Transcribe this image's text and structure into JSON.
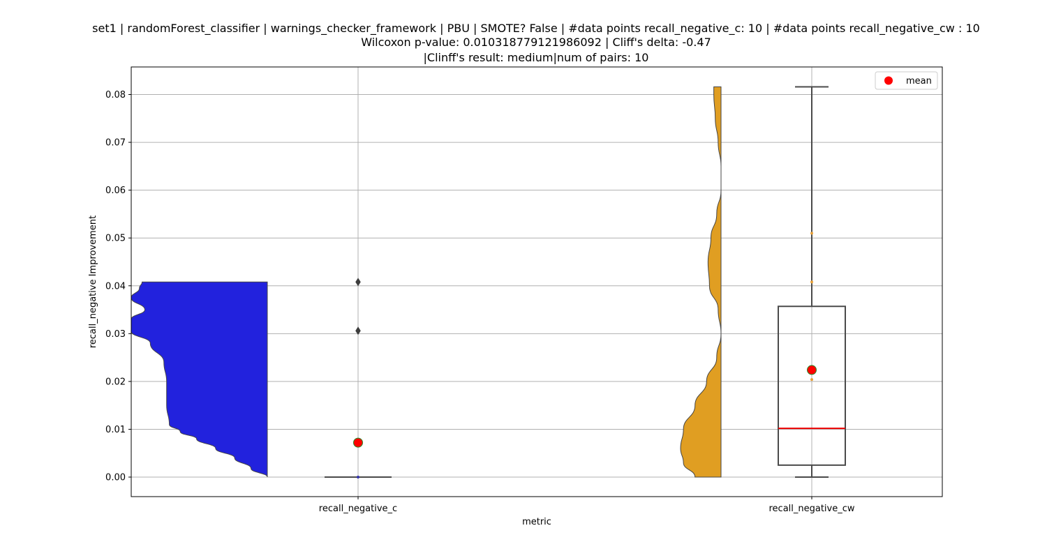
{
  "chart_data": {
    "type": "violin",
    "title_lines": [
      "set1 | randomForest_classifier | warnings_checker_framework | PBU | SMOTE? False | #data points recall_negative_c: 10 | #data points recall_negative_cw : 10",
      "Wilcoxon p-value: 0.010318779121986092 | Cliff's delta: -0.47",
      "|Clinff's result: medium|num of pairs: 10"
    ],
    "xlabel": "metric",
    "ylabel": "recall_negative Improvement",
    "categories": [
      "recall_negative_c",
      "recall_negative_cw"
    ],
    "ylim": [
      -0.004,
      0.0858
    ],
    "yticks": [
      0.0,
      0.01,
      0.02,
      0.03,
      0.04,
      0.05,
      0.06,
      0.07,
      0.08
    ],
    "ytick_labels": [
      "0.00",
      "0.01",
      "0.02",
      "0.03",
      "0.04",
      "0.05",
      "0.06",
      "0.07",
      "0.08"
    ],
    "grid": true,
    "legend": {
      "position": "top-right",
      "entries": [
        {
          "label": "mean",
          "marker": "red-circle"
        }
      ]
    },
    "colors": {
      "violin_c": "#2222dd",
      "violin_cw": "#e09e22",
      "box_edge": "#4a4a4a",
      "median": "#ee0000",
      "mean_fill": "#ff0000",
      "mean_edge": "#2a8a2a",
      "grid": "#b0b0b0"
    },
    "series": [
      {
        "category": "recall_negative_c",
        "violin_side": "left",
        "violin_range": [
          0.0,
          0.0408
        ],
        "violin_density": [
          [
            0.0,
            0.0
          ],
          [
            0.0018,
            0.06
          ],
          [
            0.004,
            0.12
          ],
          [
            0.006,
            0.19
          ],
          [
            0.008,
            0.26
          ],
          [
            0.0095,
            0.32
          ],
          [
            0.011,
            0.36
          ],
          [
            0.015,
            0.37
          ],
          [
            0.02,
            0.37
          ],
          [
            0.024,
            0.38
          ],
          [
            0.028,
            0.43
          ],
          [
            0.0305,
            0.5
          ],
          [
            0.033,
            0.5
          ],
          [
            0.035,
            0.45
          ],
          [
            0.0375,
            0.5
          ],
          [
            0.0395,
            0.47
          ],
          [
            0.0408,
            0.46
          ]
        ],
        "box": {
          "whislo": 0.0,
          "q1": 0.0,
          "median": 0.0,
          "q3": 0.0,
          "whishi": 0.0
        },
        "outliers": [
          0.0306,
          0.0408
        ],
        "mean": 0.0072
      },
      {
        "category": "recall_negative_cw",
        "violin_side": "left",
        "violin_range": [
          0.0,
          0.0816
        ],
        "violin_density": [
          [
            0.0,
            0.18
          ],
          [
            0.003,
            0.26
          ],
          [
            0.006,
            0.28
          ],
          [
            0.01,
            0.26
          ],
          [
            0.015,
            0.18
          ],
          [
            0.02,
            0.1
          ],
          [
            0.025,
            0.03
          ],
          [
            0.03,
            0.0
          ],
          [
            0.035,
            0.02
          ],
          [
            0.04,
            0.08
          ],
          [
            0.045,
            0.09
          ],
          [
            0.05,
            0.07
          ],
          [
            0.055,
            0.03
          ],
          [
            0.06,
            0.0
          ],
          [
            0.065,
            0.0
          ],
          [
            0.07,
            0.02
          ],
          [
            0.075,
            0.04
          ],
          [
            0.08,
            0.05
          ],
          [
            0.0816,
            0.05
          ]
        ],
        "box": {
          "whislo": 0.0,
          "q1": 0.0025,
          "median": 0.0102,
          "q3": 0.0357,
          "whishi": 0.0816
        },
        "points": [
          0.0204,
          0.0408,
          0.051
        ],
        "mean": 0.0224
      }
    ]
  }
}
